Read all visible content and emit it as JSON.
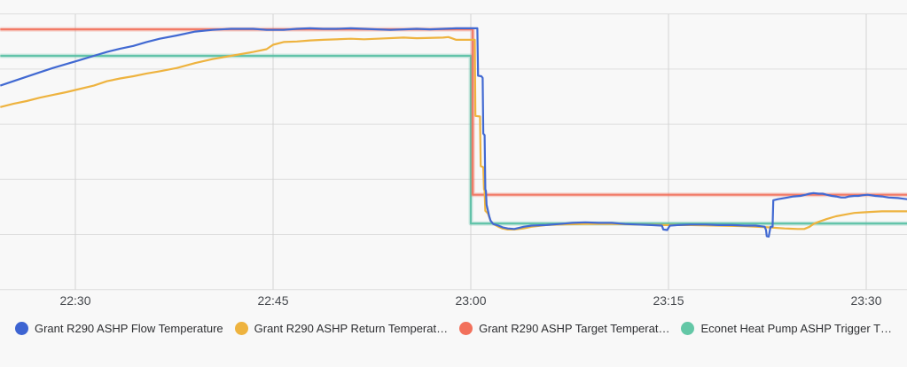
{
  "chart": {
    "x_axis": {
      "tick_labels": [
        "22:30",
        "22:45",
        "23:00",
        "23:15",
        "23:30"
      ],
      "tick_minutes_after_2200": [
        30,
        45,
        60,
        75,
        90
      ]
    },
    "y_axis": {
      "labels_visible": false,
      "gridline_units": [
        0,
        1,
        2,
        3,
        4,
        5
      ]
    },
    "legend": [
      {
        "label": "Grant R290 ASHP Flow Temperature",
        "color": "#3d64d2"
      },
      {
        "label": "Grant R290 ASHP Return Temperat…",
        "color": "#eeb33f"
      },
      {
        "label": "Grant R290 ASHP Target Temperat…",
        "color": "#f2705b"
      },
      {
        "label": "Econet Heat Pump ASHP Trigger T…",
        "color": "#63c7a6"
      }
    ],
    "colors": {
      "background": "#f8f8f8",
      "gridline_horizontal": "#dedede",
      "gridline_vertical": "#d3d3d3",
      "axis_text": "#45484d",
      "legend_text": "#2e2f32"
    }
  },
  "chart_data": {
    "type": "line",
    "title": "",
    "xlabel": "",
    "ylabel": "",
    "x_unit": "time of day; stored as minutes after 22:00 (visible window about 22:24 to 23:33)",
    "y_unit": "unlabeled gridline units: y-axis value labels are cropped out of the screenshot; 0 = bottom gridline, 5 = top gridline",
    "xlim": [
      24.3,
      93.1
    ],
    "ylim": [
      0,
      5.25
    ],
    "grid": true,
    "legend_position": "bottom",
    "x_ticks_minutes": [
      30,
      45,
      60,
      75,
      90
    ],
    "x_tick_labels": [
      "22:30",
      "22:45",
      "23:00",
      "23:15",
      "23:30"
    ],
    "series": [
      {
        "name": "Econet Heat Pump ASHP Trigger Temperature",
        "legend_label": "Econet Heat Pump ASHP Trigger T…",
        "color": "#58c0a4",
        "style": "step-threshold-line",
        "halo": true,
        "points": [
          [
            24.3,
            4.24
          ],
          [
            60.0,
            4.24
          ],
          [
            60.0,
            1.2
          ],
          [
            93.1,
            1.2
          ]
        ]
      },
      {
        "name": "Grant R290 ASHP Target Temperature",
        "legend_label": "Grant R290 ASHP Target Temperat…",
        "color": "#f2705b",
        "style": "step-threshold-line",
        "halo": true,
        "points": [
          [
            24.3,
            4.72
          ],
          [
            60.15,
            4.72
          ],
          [
            60.15,
            1.72
          ],
          [
            93.1,
            1.72
          ]
        ]
      },
      {
        "name": "Grant R290 ASHP Return Temperature",
        "legend_label": "Grant R290 ASHP Return Temperat…",
        "color": "#eeb33f",
        "style": "line",
        "halo": false,
        "points": [
          [
            24.3,
            3.31
          ],
          [
            25.3,
            3.37
          ],
          [
            26.3,
            3.42
          ],
          [
            27.3,
            3.48
          ],
          [
            28.3,
            3.53
          ],
          [
            29.3,
            3.58
          ],
          [
            30.0,
            3.62
          ],
          [
            31.4,
            3.7
          ],
          [
            32.4,
            3.78
          ],
          [
            33.4,
            3.83
          ],
          [
            34.4,
            3.87
          ],
          [
            35.4,
            3.92
          ],
          [
            36.4,
            3.96
          ],
          [
            37.7,
            4.02
          ],
          [
            39.1,
            4.11
          ],
          [
            40.4,
            4.18
          ],
          [
            41.8,
            4.24
          ],
          [
            43.5,
            4.31
          ],
          [
            44.5,
            4.36
          ],
          [
            45.0,
            4.44
          ],
          [
            45.8,
            4.49
          ],
          [
            46.8,
            4.5
          ],
          [
            47.8,
            4.52
          ],
          [
            48.8,
            4.53
          ],
          [
            50.9,
            4.55
          ],
          [
            51.9,
            4.54
          ],
          [
            52.9,
            4.55
          ],
          [
            54.9,
            4.57
          ],
          [
            55.9,
            4.56
          ],
          [
            57.9,
            4.57
          ],
          [
            58.3,
            4.58
          ],
          [
            58.9,
            4.53
          ],
          [
            59.6,
            4.53
          ],
          [
            60.3,
            4.53
          ],
          [
            60.35,
            3.15
          ],
          [
            60.7,
            3.14
          ],
          [
            60.75,
            2.24
          ],
          [
            60.95,
            2.22
          ],
          [
            61.0,
            1.82
          ],
          [
            61.05,
            1.8
          ],
          [
            61.1,
            1.43
          ],
          [
            61.3,
            1.38
          ],
          [
            61.5,
            1.25
          ],
          [
            61.7,
            1.19
          ],
          [
            62.1,
            1.14
          ],
          [
            62.4,
            1.11
          ],
          [
            62.8,
            1.09
          ],
          [
            63.3,
            1.09
          ],
          [
            64.0,
            1.11
          ],
          [
            64.6,
            1.14
          ],
          [
            65.7,
            1.17
          ],
          [
            66.7,
            1.18
          ],
          [
            68.7,
            1.19
          ],
          [
            70.7,
            1.19
          ],
          [
            72.7,
            1.18
          ],
          [
            74.7,
            1.17
          ],
          [
            76.7,
            1.17
          ],
          [
            78.8,
            1.16
          ],
          [
            80.8,
            1.15
          ],
          [
            82.5,
            1.13
          ],
          [
            83.8,
            1.11
          ],
          [
            84.8,
            1.1
          ],
          [
            85.3,
            1.1
          ],
          [
            85.7,
            1.14
          ],
          [
            86.0,
            1.19
          ],
          [
            86.4,
            1.23
          ],
          [
            87.0,
            1.28
          ],
          [
            87.7,
            1.33
          ],
          [
            88.4,
            1.36
          ],
          [
            89.1,
            1.39
          ],
          [
            89.7,
            1.4
          ],
          [
            90.4,
            1.41
          ],
          [
            91.2,
            1.42
          ],
          [
            92.0,
            1.42
          ],
          [
            93.1,
            1.42
          ]
        ]
      },
      {
        "name": "Grant R290 ASHP Flow Temperature",
        "legend_label": "Grant R290 ASHP Flow Temperature",
        "color": "#4169d2",
        "style": "line",
        "halo": false,
        "points": [
          [
            24.3,
            3.7
          ],
          [
            25.3,
            3.78
          ],
          [
            26.3,
            3.86
          ],
          [
            27.3,
            3.94
          ],
          [
            28.3,
            4.02
          ],
          [
            29.3,
            4.09
          ],
          [
            30.3,
            4.16
          ],
          [
            31.4,
            4.24
          ],
          [
            32.4,
            4.31
          ],
          [
            33.4,
            4.37
          ],
          [
            34.4,
            4.42
          ],
          [
            35.4,
            4.49
          ],
          [
            36.4,
            4.55
          ],
          [
            37.7,
            4.61
          ],
          [
            39.1,
            4.68
          ],
          [
            40.4,
            4.71
          ],
          [
            41.8,
            4.73
          ],
          [
            43.5,
            4.73
          ],
          [
            44.5,
            4.71
          ],
          [
            45.8,
            4.71
          ],
          [
            46.8,
            4.73
          ],
          [
            47.8,
            4.74
          ],
          [
            48.8,
            4.73
          ],
          [
            49.8,
            4.73
          ],
          [
            50.9,
            4.74
          ],
          [
            51.9,
            4.73
          ],
          [
            52.9,
            4.72
          ],
          [
            53.9,
            4.71
          ],
          [
            54.9,
            4.72
          ],
          [
            55.9,
            4.73
          ],
          [
            56.9,
            4.72
          ],
          [
            57.9,
            4.73
          ],
          [
            58.9,
            4.74
          ],
          [
            60.5,
            4.74
          ],
          [
            60.55,
            3.88
          ],
          [
            60.8,
            3.87
          ],
          [
            60.9,
            3.84
          ],
          [
            60.95,
            2.83
          ],
          [
            61.05,
            2.8
          ],
          [
            61.1,
            1.82
          ],
          [
            61.15,
            1.79
          ],
          [
            61.2,
            1.54
          ],
          [
            61.4,
            1.33
          ],
          [
            61.5,
            1.25
          ],
          [
            61.7,
            1.19
          ],
          [
            62.1,
            1.16
          ],
          [
            62.4,
            1.13
          ],
          [
            62.8,
            1.11
          ],
          [
            63.3,
            1.1
          ],
          [
            64.0,
            1.14
          ],
          [
            64.6,
            1.16
          ],
          [
            65.7,
            1.17
          ],
          [
            66.7,
            1.19
          ],
          [
            67.7,
            1.21
          ],
          [
            68.7,
            1.22
          ],
          [
            69.7,
            1.21
          ],
          [
            70.7,
            1.21
          ],
          [
            71.7,
            1.19
          ],
          [
            72.7,
            1.18
          ],
          [
            73.7,
            1.17
          ],
          [
            74.5,
            1.16
          ],
          [
            74.6,
            1.09
          ],
          [
            74.9,
            1.08
          ],
          [
            75.1,
            1.16
          ],
          [
            75.7,
            1.17
          ],
          [
            76.7,
            1.18
          ],
          [
            77.8,
            1.18
          ],
          [
            78.8,
            1.17
          ],
          [
            79.8,
            1.17
          ],
          [
            80.8,
            1.16
          ],
          [
            81.6,
            1.16
          ],
          [
            82.0,
            1.15
          ],
          [
            82.3,
            1.14
          ],
          [
            82.4,
            1.08
          ],
          [
            82.45,
            0.97
          ],
          [
            82.6,
            0.96
          ],
          [
            82.7,
            1.09
          ],
          [
            82.75,
            1.14
          ],
          [
            82.9,
            1.14
          ],
          [
            82.95,
            1.62
          ],
          [
            83.3,
            1.64
          ],
          [
            83.8,
            1.66
          ],
          [
            84.5,
            1.69
          ],
          [
            85.0,
            1.7
          ],
          [
            85.4,
            1.72
          ],
          [
            85.7,
            1.74
          ],
          [
            86.0,
            1.75
          ],
          [
            86.4,
            1.74
          ],
          [
            86.7,
            1.74
          ],
          [
            87.0,
            1.72
          ],
          [
            87.4,
            1.7
          ],
          [
            87.7,
            1.69
          ],
          [
            88.1,
            1.67
          ],
          [
            88.4,
            1.67
          ],
          [
            88.7,
            1.69
          ],
          [
            89.1,
            1.7
          ],
          [
            89.4,
            1.7
          ],
          [
            89.7,
            1.71
          ],
          [
            90.1,
            1.72
          ],
          [
            90.4,
            1.71
          ],
          [
            90.7,
            1.7
          ],
          [
            91.2,
            1.69
          ],
          [
            91.7,
            1.67
          ],
          [
            92.4,
            1.66
          ],
          [
            93.1,
            1.64
          ]
        ]
      }
    ]
  }
}
